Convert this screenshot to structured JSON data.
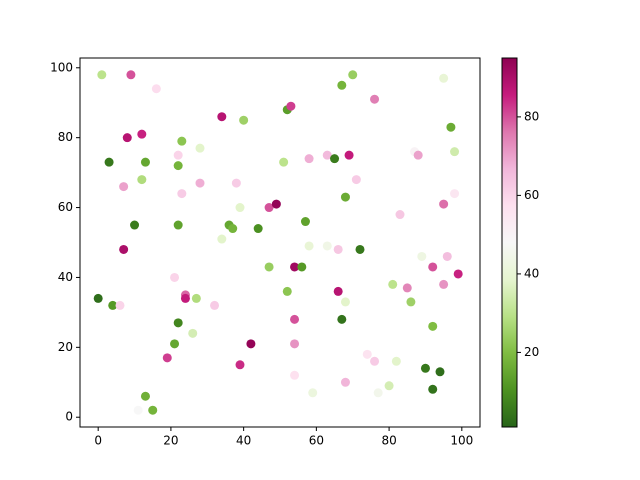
{
  "chart_data": {
    "type": "scatter",
    "x": [
      0,
      1,
      3,
      4,
      6,
      7,
      7,
      8,
      9,
      10,
      11,
      12,
      12,
      13,
      13,
      15,
      16,
      19,
      21,
      21,
      22,
      22,
      22,
      22,
      23,
      23,
      24,
      24,
      26,
      27,
      28,
      28,
      32,
      34,
      34,
      36,
      37,
      38,
      39,
      39,
      40,
      42,
      44,
      47,
      47,
      49,
      51,
      52,
      52,
      53,
      54,
      54,
      54,
      54,
      56,
      57,
      58,
      58,
      59,
      63,
      63,
      65,
      66,
      66,
      67,
      67,
      68,
      68,
      68,
      69,
      70,
      71,
      72,
      74,
      76,
      76,
      77,
      80,
      81,
      82,
      83,
      85,
      86,
      87,
      88,
      89,
      90,
      92,
      92,
      92,
      94,
      95,
      95,
      95,
      96,
      97,
      98,
      98,
      99
    ],
    "y": [
      34,
      98,
      73,
      32,
      32,
      66,
      48,
      80,
      98,
      55,
      2,
      81,
      68,
      6,
      73,
      2,
      94,
      17,
      21,
      40,
      72,
      75,
      55,
      27,
      79,
      64,
      35,
      34,
      24,
      34,
      77,
      67,
      32,
      86,
      51,
      55,
      54,
      67,
      15,
      60,
      85,
      21,
      54,
      43,
      60,
      61,
      73,
      88,
      36,
      89,
      43,
      28,
      21,
      12,
      43,
      56,
      74,
      49,
      7,
      75,
      49,
      74,
      48,
      36,
      95,
      28,
      63,
      33,
      10,
      75,
      98,
      68,
      48,
      18,
      91,
      16,
      7,
      9,
      38,
      16,
      58,
      37,
      33,
      76,
      75,
      46,
      14,
      26,
      8,
      43,
      13,
      97,
      61,
      38,
      46,
      83,
      76,
      64,
      41
    ],
    "c": [
      3,
      30,
      5,
      12,
      60,
      70,
      90,
      88,
      80,
      6,
      48,
      85,
      28,
      17,
      15,
      18,
      58,
      82,
      15,
      60,
      18,
      60,
      14,
      8,
      22,
      62,
      78,
      86,
      35,
      28,
      38,
      68,
      62,
      88,
      38,
      15,
      18,
      62,
      84,
      38,
      25,
      94,
      10,
      24,
      80,
      94,
      30,
      13,
      22,
      82,
      92,
      80,
      72,
      57,
      12,
      14,
      68,
      40,
      42,
      66,
      44,
      6,
      63,
      88,
      18,
      4,
      16,
      38,
      67,
      86,
      24,
      62,
      5,
      56,
      75,
      62,
      45,
      35,
      30,
      38,
      63,
      74,
      25,
      50,
      70,
      43,
      5,
      20,
      4,
      80,
      3,
      40,
      77,
      72,
      65,
      16,
      34,
      55,
      85
    ],
    "xlim": [
      -5,
      105
    ],
    "ylim": [
      -2.8,
      102.8
    ],
    "xticks": [
      0,
      20,
      40,
      60,
      80,
      100
    ],
    "yticks": [
      0,
      20,
      40,
      60,
      80,
      100
    ],
    "colormap": [
      "#276419",
      "#4d9221",
      "#7fbc41",
      "#b8e186",
      "#e6f5d0",
      "#f7f7f7",
      "#fde0ef",
      "#f1b6da",
      "#de77ae",
      "#c51b7d",
      "#8e0152"
    ],
    "colorbar": {
      "lim": [
        1,
        95
      ],
      "ticks": [
        20,
        40,
        60,
        80
      ]
    }
  }
}
